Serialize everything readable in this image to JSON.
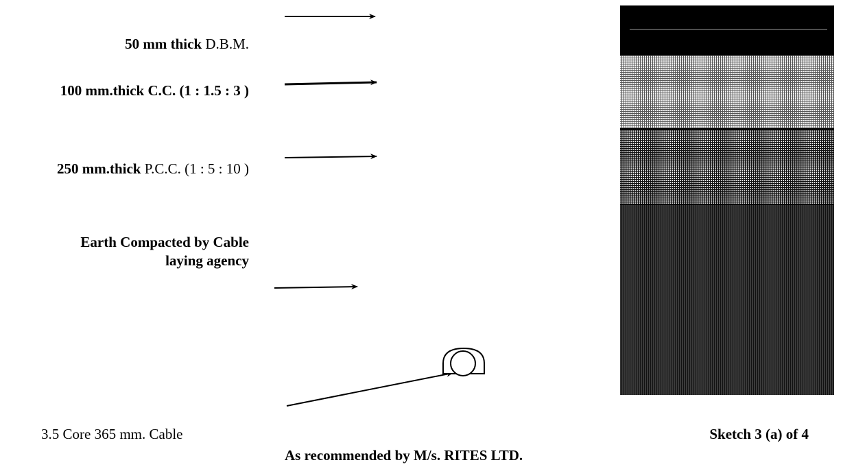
{
  "labels": {
    "dbm": {
      "bold": "50 mm thick",
      "rest": " D.B.M."
    },
    "cc": {
      "bold": "100 mm.thick C.C. (1 : 1.5 : 3 )",
      "rest": ""
    },
    "pcc": {
      "bold": "250 mm.thick",
      "rest": "  P.C.C. (1 : 5 : 10 )"
    },
    "earth": {
      "bold": "Earth Compacted  by Cable laying agency",
      "rest": ""
    }
  },
  "cable_label": "3.5 Core 365 mm. Cable",
  "sketch_number": "Sketch 3 (a) of 4",
  "recommendation": "As recommended by M/s. RITES LTD."
}
